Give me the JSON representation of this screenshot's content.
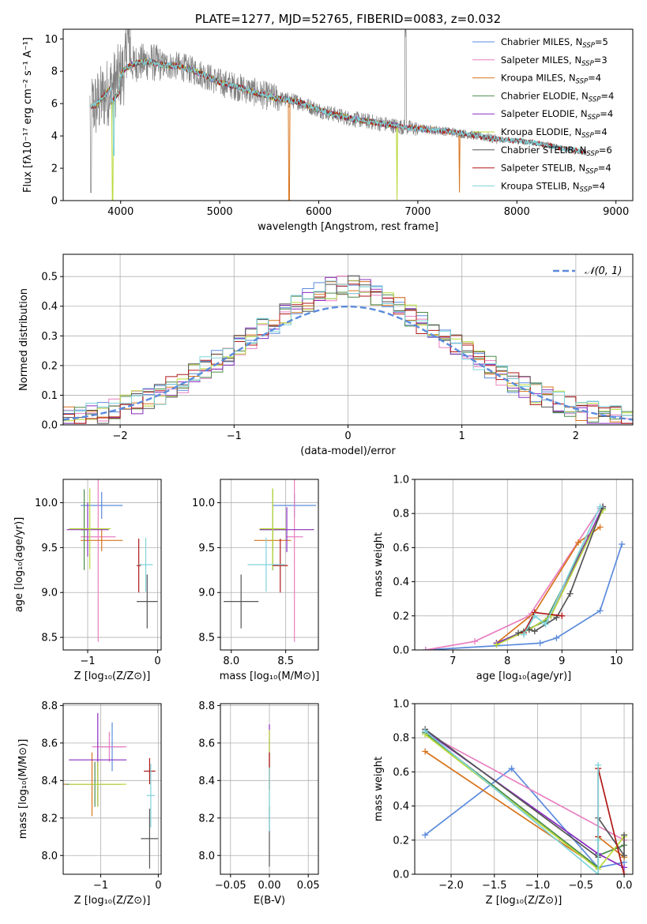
{
  "colors": {
    "Chabrier MILES": "#5b8bdc",
    "Salpeter MILES": "#e87fc0",
    "Kroupa MILES": "#d8741c",
    "Chabrier ELODIE": "#4b8b4b",
    "Salpeter ELODIE": "#8a2ec0",
    "Kroupa ELODIE": "#b8d838",
    "Chabrier STELIB": "#555555",
    "Salpeter STELIB": "#b01818",
    "Kroupa STELIB": "#7fd3da",
    "data": "#808080"
  },
  "model_order": [
    "Chabrier MILES",
    "Salpeter MILES",
    "Kroupa MILES",
    "Chabrier ELODIE",
    "Salpeter ELODIE",
    "Kroupa ELODIE",
    "Chabrier STELIB",
    "Salpeter STELIB",
    "Kroupa STELIB"
  ],
  "chart_data": [
    {
      "id": "spectrum",
      "type": "line",
      "title": "PLATE=1277, MJD=52765, FIBERID=0083, z=0.032",
      "xlabel": "wavelength [Angstrom, rest frame]",
      "ylabel": "Flux [fλ10⁻¹⁷ erg cm⁻² s⁻¹ A⁻¹]",
      "xlim": [
        3420,
        9170
      ],
      "ylim": [
        0,
        10.6
      ],
      "xticks": [
        4000,
        5000,
        6000,
        7000,
        8000,
        9000
      ],
      "yticks": [
        0,
        2,
        4,
        6,
        8,
        10
      ],
      "legend_position": "top-right",
      "legend": [
        {
          "model": "Chabrier MILES",
          "name": "Chabrier MILES, N",
          "sub": "SSP",
          "tail": "=5"
        },
        {
          "model": "Salpeter MILES",
          "name": "Salpeter MILES, N",
          "sub": "SSP",
          "tail": "=3"
        },
        {
          "model": "Kroupa MILES",
          "name": "Kroupa MILES, N",
          "sub": "SSP",
          "tail": "=4"
        },
        {
          "model": "Chabrier ELODIE",
          "name": "Chabrier ELODIE, N",
          "sub": "SSP",
          "tail": "=4"
        },
        {
          "model": "Salpeter ELODIE",
          "name": "Salpeter ELODIE, N",
          "sub": "SSP",
          "tail": "=4"
        },
        {
          "model": "Kroupa ELODIE",
          "name": "Kroupa ELODIE, N",
          "sub": "SSP",
          "tail": "=4"
        },
        {
          "model": "Chabrier STELIB",
          "name": "Chabrier STELIB, N",
          "sub": "SSP",
          "tail": "=6"
        },
        {
          "model": "Salpeter STELIB",
          "name": "Salpeter STELIB, N",
          "sub": "SSP",
          "tail": "=4"
        },
        {
          "model": "Kroupa STELIB",
          "name": "Kroupa STELIB, N",
          "sub": "SSP",
          "tail": "=4"
        }
      ],
      "continuum": {
        "x": [
          3680,
          3750,
          3850,
          3950,
          4050,
          4150,
          4300,
          4400,
          4600,
          4800,
          5000,
          5200,
          5400,
          5600,
          5800,
          6000,
          6300,
          6600,
          6900,
          7200,
          7400,
          7600,
          7800,
          8000,
          8200,
          8400,
          8600,
          8700
        ],
        "y": [
          5.8,
          5.9,
          6.6,
          7.3,
          8.2,
          8.5,
          8.6,
          8.4,
          8.3,
          7.9,
          7.3,
          7.0,
          6.6,
          6.3,
          6.1,
          5.6,
          5.1,
          4.8,
          4.5,
          4.35,
          4.2,
          4.0,
          3.8,
          3.7,
          3.55,
          3.3,
          3.1,
          3.0
        ]
      }
    },
    {
      "id": "residuals",
      "type": "histogram",
      "xlabel": "(data-model)/error",
      "ylabel": "Normed distribution",
      "xlim": [
        -2.5,
        2.5
      ],
      "ylim": [
        0,
        0.575
      ],
      "xticks": [
        -2,
        -1,
        0,
        1,
        2
      ],
      "yticks": [
        0.0,
        0.1,
        0.2,
        0.3,
        0.4,
        0.5
      ],
      "legend_position": "top-right",
      "reference_label": "𝒩(0, 1)",
      "bin_width": 0.1
    },
    {
      "id": "age-vs-Z",
      "type": "errorbar",
      "xlabel": "Z [log₁₀(Z/Z⊙)]",
      "ylabel": "age  [log₁₀(age/yr)]",
      "xlim": [
        -1.35,
        0.05
      ],
      "ylim": [
        8.36,
        10.26
      ],
      "xticks": [
        -1,
        0
      ],
      "yticks": [
        8.5,
        9.0,
        9.5,
        10.0
      ],
      "points": [
        {
          "model": "Chabrier MILES",
          "x": -0.8,
          "xerr": 0.3,
          "y": 9.97,
          "yerr": 0.15
        },
        {
          "model": "Salpeter MILES",
          "x": -0.85,
          "xerr": 0.25,
          "y": 9.62,
          "yerr": 1.17
        },
        {
          "model": "Kroupa MILES",
          "x": -0.8,
          "xerr": 0.3,
          "y": 9.58,
          "yerr": 0.12
        },
        {
          "model": "Chabrier ELODIE",
          "x": -1.05,
          "xerr": 0.05,
          "y": 9.7,
          "yerr": 0.45
        },
        {
          "model": "Salpeter ELODIE",
          "x": -1.0,
          "xerr": 0.3,
          "y": 9.7,
          "yerr": 0.3
        },
        {
          "model": "Kroupa ELODIE",
          "x": -0.97,
          "xerr": 0.3,
          "y": 9.71,
          "yerr": 0.45
        },
        {
          "model": "Chabrier STELIB",
          "x": -0.15,
          "xerr": 0.15,
          "y": 8.9,
          "yerr": 0.3
        },
        {
          "model": "Salpeter STELIB",
          "x": -0.27,
          "xerr": 0.03,
          "y": 9.3,
          "yerr": 0.3
        },
        {
          "model": "Kroupa STELIB",
          "x": -0.17,
          "xerr": 0.1,
          "y": 9.31,
          "yerr": 0.3
        }
      ]
    },
    {
      "id": "age-vs-mass",
      "type": "errorbar",
      "xlabel": "mass [log₁₀(M/M⊙)]",
      "ylabel": "",
      "xlim": [
        7.9,
        8.8
      ],
      "ylim": [
        8.36,
        10.26
      ],
      "xticks": [
        8.0,
        8.5
      ],
      "yticks": [
        8.5,
        9.0,
        9.5,
        10.0
      ],
      "points": [
        {
          "model": "Chabrier MILES",
          "x": 8.58,
          "xerr": 0.2,
          "y": 9.97,
          "yerr": 0.13
        },
        {
          "model": "Salpeter MILES",
          "x": 8.58,
          "xerr": 0.08,
          "y": 9.62,
          "yerr": 1.17
        },
        {
          "model": "Kroupa MILES",
          "x": 8.38,
          "xerr": 0.17,
          "y": 9.58,
          "yerr": 0.12
        },
        {
          "model": "Chabrier ELODIE",
          "x": 8.38,
          "xerr": 0.12,
          "y": 9.7,
          "yerr": 0.45
        },
        {
          "model": "Salpeter ELODIE",
          "x": 8.51,
          "xerr": 0.25,
          "y": 9.7,
          "yerr": 0.25
        },
        {
          "model": "Kroupa ELODIE",
          "x": 8.38,
          "xerr": 0.12,
          "y": 9.71,
          "yerr": 0.45
        },
        {
          "model": "Chabrier STELIB",
          "x": 8.09,
          "xerr": 0.16,
          "y": 8.9,
          "yerr": 0.3
        },
        {
          "model": "Salpeter STELIB",
          "x": 8.45,
          "xerr": 0.07,
          "y": 9.3,
          "yerr": 0.3
        },
        {
          "model": "Kroupa STELIB",
          "x": 8.32,
          "xerr": 0.17,
          "y": 9.31,
          "yerr": 0.3
        }
      ]
    },
    {
      "id": "weight-vs-age",
      "type": "line",
      "xlabel": "age  [log₁₀(age/yr)]",
      "ylabel": "mass weight",
      "xlim": [
        6.3,
        10.3
      ],
      "ylim": [
        0,
        1.0
      ],
      "xticks": [
        7,
        8,
        9,
        10
      ],
      "yticks": [
        0.0,
        0.2,
        0.4,
        0.6,
        0.8,
        1.0
      ],
      "series": [
        {
          "model": "Chabrier MILES",
          "x": [
            6.5,
            8.6,
            8.9,
            9.7,
            10.1
          ],
          "y": [
            0.0,
            0.04,
            0.07,
            0.23,
            0.62
          ]
        },
        {
          "model": "Salpeter MILES",
          "x": [
            6.5,
            7.4,
            8.4,
            9.7
          ],
          "y": [
            0.0,
            0.05,
            0.2,
            0.83
          ]
        },
        {
          "model": "Kroupa MILES",
          "x": [
            7.8,
            8.5,
            9.3,
            9.7
          ],
          "y": [
            0.04,
            0.22,
            0.63,
            0.72
          ]
        },
        {
          "model": "Chabrier ELODIE",
          "x": [
            7.8,
            8.3,
            8.7,
            9.75
          ],
          "y": [
            0.04,
            0.11,
            0.17,
            0.83
          ]
        },
        {
          "model": "Salpeter ELODIE",
          "x": [
            7.8,
            8.4,
            8.8,
            9.75
          ],
          "y": [
            0.04,
            0.12,
            0.2,
            0.84
          ]
        },
        {
          "model": "Kroupa ELODIE",
          "x": [
            7.8,
            8.4,
            8.8,
            9.75
          ],
          "y": [
            0.03,
            0.12,
            0.2,
            0.82
          ]
        },
        {
          "model": "Chabrier STELIB",
          "x": [
            8.2,
            8.4,
            8.5,
            8.9,
            9.15,
            9.75
          ],
          "y": [
            0.1,
            0.12,
            0.11,
            0.19,
            0.33,
            0.84
          ]
        },
        {
          "model": "Salpeter STELIB",
          "x": [
            8.3,
            8.5,
            9.0
          ],
          "y": [
            0.1,
            0.22,
            0.2
          ]
        },
        {
          "model": "Kroupa STELIB",
          "x": [
            8.3,
            8.5,
            8.7,
            9.7
          ],
          "y": [
            0.09,
            0.2,
            0.15,
            0.84
          ]
        }
      ]
    },
    {
      "id": "mass-vs-Z",
      "type": "errorbar",
      "xlabel": "Z [log₁₀(Z/Z⊙)]",
      "ylabel": "mass [log₁₀(M/M⊙)]",
      "xlim": [
        -1.65,
        0.05
      ],
      "ylim": [
        7.9,
        8.81
      ],
      "xticks": [
        -1,
        0
      ],
      "yticks": [
        8.0,
        8.2,
        8.4,
        8.6,
        8.8
      ],
      "points": [
        {
          "model": "Chabrier MILES",
          "x": -0.8,
          "xerr": 0.2,
          "y": 8.58,
          "yerr": 0.13
        },
        {
          "model": "Salpeter MILES",
          "x": -0.85,
          "xerr": 0.3,
          "y": 8.58,
          "yerr": 0.08
        },
        {
          "model": "Kroupa MILES",
          "x": -1.15,
          "xerr": 0.5,
          "y": 8.38,
          "yerr": 0.17
        },
        {
          "model": "Chabrier ELODIE",
          "x": -1.1,
          "xerr": 0.5,
          "y": 8.38,
          "yerr": 0.12
        },
        {
          "model": "Salpeter ELODIE",
          "x": -1.05,
          "xerr": 0.5,
          "y": 8.51,
          "yerr": 0.25
        },
        {
          "model": "Kroupa ELODIE",
          "x": -1.05,
          "xerr": 0.5,
          "y": 8.38,
          "yerr": 0.12
        },
        {
          "model": "Chabrier STELIB",
          "x": -0.15,
          "xerr": 0.15,
          "y": 8.09,
          "yerr": 0.16
        },
        {
          "model": "Salpeter STELIB",
          "x": -0.15,
          "xerr": 0.1,
          "y": 8.45,
          "yerr": 0.07
        },
        {
          "model": "Kroupa STELIB",
          "x": -0.13,
          "xerr": 0.07,
          "y": 8.32,
          "yerr": 0.17
        }
      ]
    },
    {
      "id": "mass-vs-EBV",
      "type": "errorbar",
      "xlabel": "E(B-V)",
      "ylabel": "",
      "xlim": [
        -0.063,
        0.063
      ],
      "ylim": [
        7.9,
        8.81
      ],
      "xticks": [
        -0.05,
        0.0,
        0.05
      ],
      "yticks": [
        8.0,
        8.2,
        8.4,
        8.6,
        8.8
      ],
      "points": [
        {
          "model": "Salpeter ELODIE",
          "x": 0.0,
          "xerr": 0,
          "y": 8.58,
          "yerr": 0.12
        },
        {
          "model": "Kroupa ELODIE",
          "x": 0.0,
          "xerr": 0,
          "y": 8.45,
          "yerr": 0.22
        },
        {
          "model": "Salpeter STELIB",
          "x": 0.0,
          "xerr": 0,
          "y": 8.45,
          "yerr": 0.1
        },
        {
          "model": "Chabrier STELIB",
          "x": 0.0,
          "xerr": 0,
          "y": 8.1,
          "yerr": 0.16
        },
        {
          "model": "Kroupa STELIB",
          "x": 0.0,
          "xerr": 0,
          "y": 8.3,
          "yerr": 0.17
        }
      ]
    },
    {
      "id": "weight-vs-Z",
      "type": "line",
      "xlabel": "Z [log₁₀(Z/Z⊙)]",
      "ylabel": "mass weight",
      "xlim": [
        -2.42,
        0.1
      ],
      "ylim": [
        0,
        1.0
      ],
      "xticks": [
        -2.0,
        -1.5,
        -1.0,
        -0.5,
        0.0
      ],
      "yticks": [
        0.0,
        0.2,
        0.4,
        0.6,
        0.8,
        1.0
      ],
      "series": [
        {
          "model": "Chabrier MILES",
          "x": [
            -2.3,
            -1.3,
            -0.3,
            0.0
          ],
          "y": [
            0.23,
            0.62,
            0.04,
            0.07
          ]
        },
        {
          "model": "Salpeter MILES",
          "x": [
            -2.3,
            0.0
          ],
          "y": [
            0.83,
            0.2
          ]
        },
        {
          "model": "Kroupa MILES",
          "x": [
            -2.3,
            -0.3,
            -0.3,
            0.0
          ],
          "y": [
            0.72,
            0.04,
            0.22,
            0.1
          ]
        },
        {
          "model": "Chabrier ELODIE",
          "x": [
            -2.3,
            -0.3,
            -0.3,
            0.0
          ],
          "y": [
            0.83,
            0.04,
            0.11,
            0.17
          ]
        },
        {
          "model": "Salpeter ELODIE",
          "x": [
            -2.3,
            -0.3,
            0.0
          ],
          "y": [
            0.84,
            0.12,
            0.04
          ]
        },
        {
          "model": "Kroupa ELODIE",
          "x": [
            -2.3,
            -0.3,
            0.0
          ],
          "y": [
            0.82,
            0.03,
            0.22
          ]
        },
        {
          "model": "Chabrier STELIB",
          "x": [
            -2.3,
            -0.3,
            -0.3,
            0.0,
            0.0
          ],
          "y": [
            0.85,
            0.1,
            0.33,
            0.11,
            0.23
          ]
        },
        {
          "model": "Salpeter STELIB",
          "x": [
            -0.3,
            -0.3,
            0.0
          ],
          "y": [
            0.22,
            0.62,
            0.0
          ]
        },
        {
          "model": "Kroupa STELIB",
          "x": [
            -2.3,
            -0.3,
            -0.3,
            -0.3
          ],
          "y": [
            0.84,
            0.0,
            0.64,
            0.2
          ]
        }
      ]
    }
  ]
}
